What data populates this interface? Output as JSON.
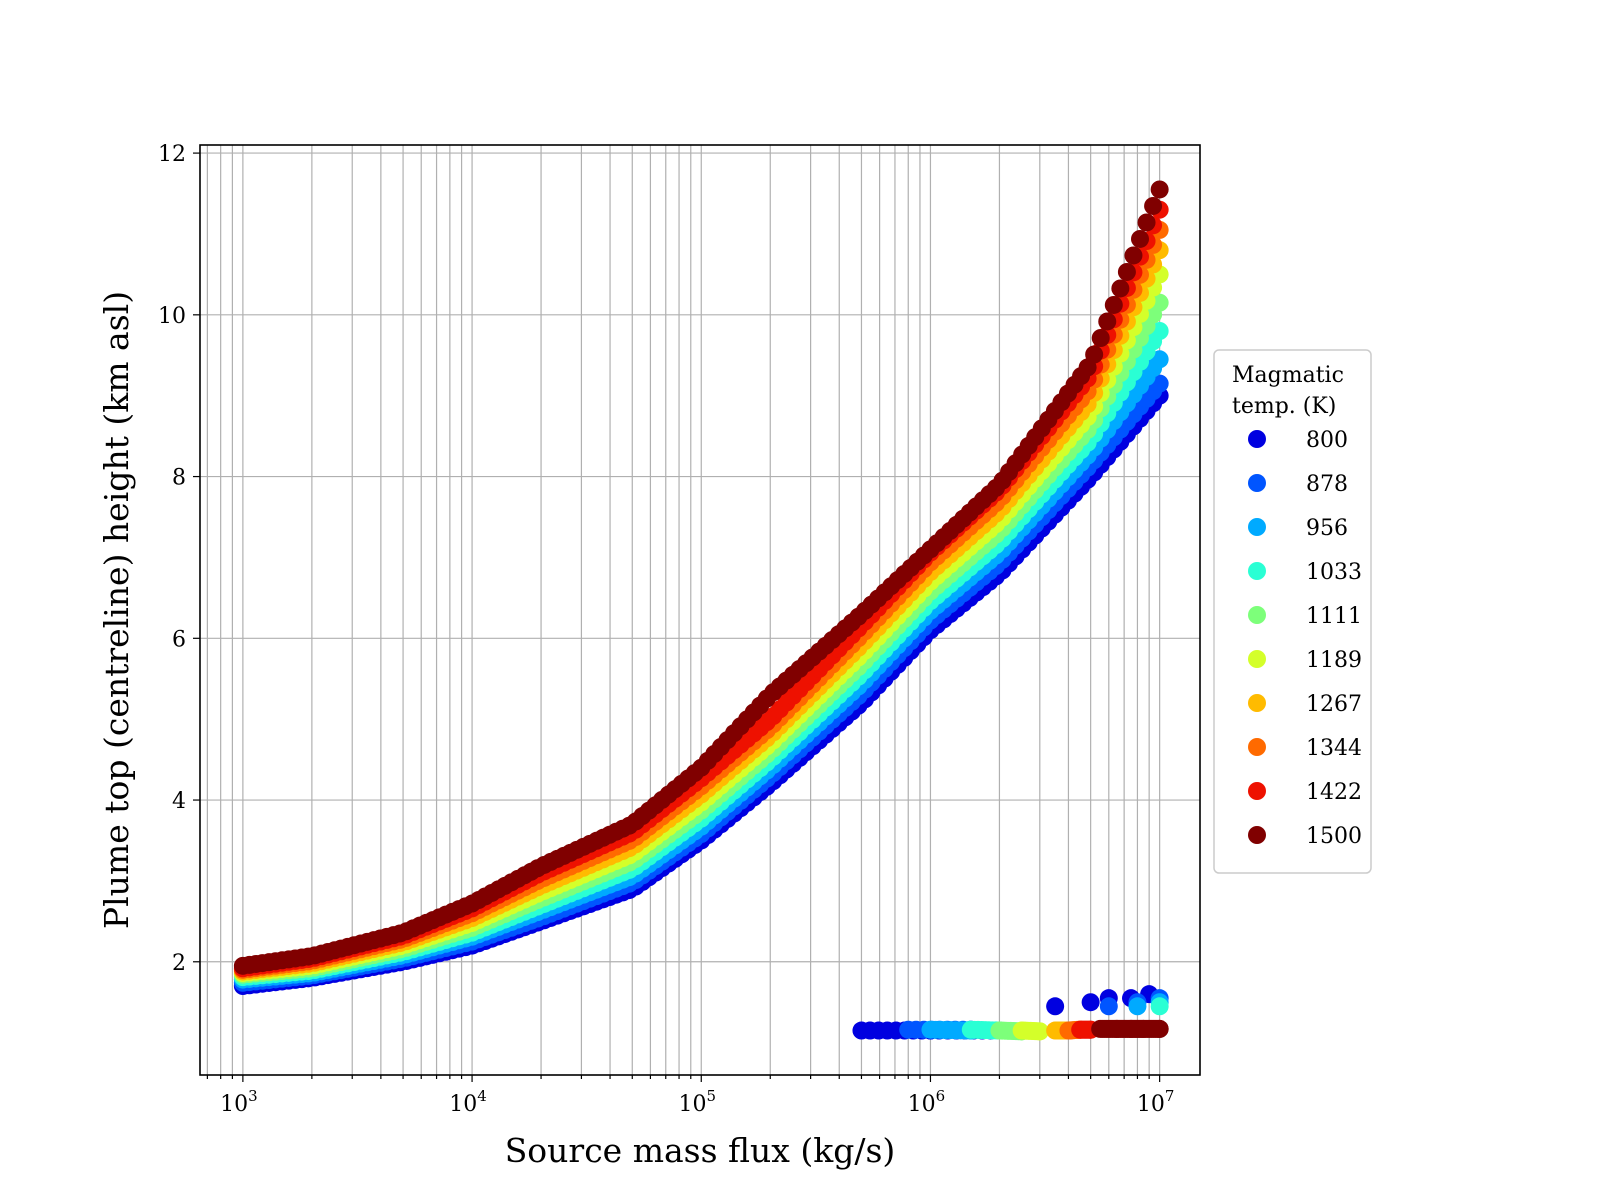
{
  "chart_data": {
    "type": "scatter",
    "title": "",
    "xlabel": "Source mass flux (kg/s)",
    "ylabel": "Plume top (centreline) height (km asl)",
    "xscale": "log",
    "xlim": [
      650,
      15000000
    ],
    "ylim": [
      0.6,
      12.1
    ],
    "x_ticks": [
      {
        "base": "10",
        "exp": "3",
        "value": 1000
      },
      {
        "base": "10",
        "exp": "4",
        "value": 10000
      },
      {
        "base": "10",
        "exp": "5",
        "value": 100000
      },
      {
        "base": "10",
        "exp": "6",
        "value": 1000000
      },
      {
        "base": "10",
        "exp": "7",
        "value": 10000000
      }
    ],
    "y_ticks": [
      2,
      4,
      6,
      8,
      10,
      12
    ],
    "grid": true,
    "legend": {
      "title_lines": [
        "Magmatic",
        "temp. (K)"
      ],
      "placement": "outside-right"
    },
    "series": [
      {
        "name": "800",
        "color": "#0000e0",
        "x": [
          1000,
          2000,
          5000,
          10000,
          20000,
          50000,
          100000,
          200000,
          500000,
          1000000,
          2000000,
          5000000,
          10000000
        ],
        "y": [
          1.7,
          1.8,
          2.0,
          2.2,
          2.5,
          2.9,
          3.5,
          4.2,
          5.2,
          6.1,
          6.8,
          8.0,
          9.0
        ],
        "low_x": [
          500000,
          1000000,
          2000000
        ],
        "low_y": [
          1.15,
          1.15,
          1.15
        ],
        "upper_x": [
          3500000,
          5000000,
          6000000,
          7500000,
          9000000
        ],
        "upper_y": [
          1.45,
          1.5,
          1.55,
          1.55,
          1.6
        ]
      },
      {
        "name": "878",
        "color": "#0055ff",
        "x": [
          1000,
          2000,
          5000,
          10000,
          20000,
          50000,
          100000,
          200000,
          500000,
          1000000,
          2000000,
          5000000,
          10000000
        ],
        "y": [
          1.74,
          1.83,
          2.04,
          2.25,
          2.55,
          2.98,
          3.58,
          4.3,
          5.32,
          6.22,
          6.93,
          8.15,
          9.15
        ],
        "low_x": [
          800000,
          1500000
        ],
        "low_y": [
          1.16,
          1.16
        ],
        "upper_x": [
          6000000,
          8000000,
          10000000
        ],
        "upper_y": [
          1.45,
          1.5,
          1.55
        ]
      },
      {
        "name": "956",
        "color": "#00aaff",
        "x": [
          1000,
          2000,
          5000,
          10000,
          20000,
          50000,
          100000,
          200000,
          500000,
          1000000,
          2000000,
          5000000,
          10000000
        ],
        "y": [
          1.78,
          1.86,
          2.08,
          2.31,
          2.63,
          3.06,
          3.67,
          4.4,
          5.44,
          6.34,
          7.06,
          8.3,
          9.45
        ],
        "low_x": [
          1000000,
          1500000
        ],
        "low_y": [
          1.16,
          1.15
        ],
        "upper_x": [
          8000000,
          10000000
        ],
        "upper_y": [
          1.45,
          1.5
        ]
      },
      {
        "name": "1033",
        "color": "#2affd4",
        "x": [
          1000,
          2000,
          5000,
          10000,
          20000,
          50000,
          100000,
          200000,
          500000,
          1000000,
          2000000,
          5000000,
          10000000
        ],
        "y": [
          1.81,
          1.89,
          2.12,
          2.36,
          2.7,
          3.15,
          3.77,
          4.5,
          5.56,
          6.46,
          7.19,
          8.46,
          9.8
        ],
        "low_x": [
          1500000,
          2000000
        ],
        "low_y": [
          1.16,
          1.15
        ],
        "upper_x": [
          10000000
        ],
        "upper_y": [
          1.45
        ]
      },
      {
        "name": "1111",
        "color": "#7dff7a",
        "x": [
          1000,
          2000,
          5000,
          10000,
          20000,
          50000,
          100000,
          200000,
          500000,
          1000000,
          2000000,
          5000000,
          10000000
        ],
        "y": [
          1.84,
          1.92,
          2.16,
          2.42,
          2.78,
          3.24,
          3.87,
          4.6,
          5.68,
          6.58,
          7.32,
          8.62,
          10.15
        ],
        "low_x": [
          2000000,
          2500000
        ],
        "low_y": [
          1.15,
          1.14
        ],
        "upper_x": [],
        "upper_y": []
      },
      {
        "name": "1189",
        "color": "#d4ff2a",
        "x": [
          1000,
          2000,
          5000,
          10000,
          20000,
          50000,
          100000,
          200000,
          500000,
          1000000,
          2000000,
          5000000,
          10000000
        ],
        "y": [
          1.86,
          1.95,
          2.2,
          2.48,
          2.86,
          3.33,
          3.97,
          4.7,
          5.8,
          6.7,
          7.45,
          8.78,
          10.5
        ],
        "low_x": [
          2500000,
          3000000
        ],
        "low_y": [
          1.15,
          1.14
        ],
        "upper_x": [],
        "upper_y": []
      },
      {
        "name": "1267",
        "color": "#ffbb00",
        "x": [
          1000,
          2000,
          5000,
          10000,
          20000,
          50000,
          100000,
          200000,
          500000,
          1000000,
          2000000,
          5000000,
          10000000
        ],
        "y": [
          1.88,
          1.98,
          2.24,
          2.54,
          2.94,
          3.42,
          4.07,
          4.8,
          5.92,
          6.82,
          7.58,
          8.94,
          10.8
        ],
        "low_x": [
          3500000,
          4000000
        ],
        "low_y": [
          1.15,
          1.15
        ],
        "upper_x": [],
        "upper_y": []
      },
      {
        "name": "1344",
        "color": "#ff6a00",
        "x": [
          1000,
          2000,
          5000,
          10000,
          20000,
          50000,
          100000,
          200000,
          500000,
          1000000,
          2000000,
          5000000,
          10000000
        ],
        "y": [
          1.9,
          2.01,
          2.28,
          2.6,
          3.02,
          3.51,
          4.17,
          4.9,
          6.04,
          6.94,
          7.71,
          9.1,
          11.05
        ],
        "low_x": [
          4000000,
          4500000
        ],
        "low_y": [
          1.15,
          1.16
        ],
        "upper_x": [],
        "upper_y": []
      },
      {
        "name": "1422",
        "color": "#ee1100",
        "x": [
          1000,
          2000,
          5000,
          10000,
          20000,
          50000,
          100000,
          200000,
          500000,
          1000000,
          2000000,
          5000000,
          10000000
        ],
        "y": [
          1.92,
          2.04,
          2.32,
          2.66,
          3.1,
          3.6,
          4.27,
          5.0,
          6.16,
          7.06,
          7.84,
          9.26,
          11.3
        ],
        "low_x": [
          4500000,
          5000000
        ],
        "low_y": [
          1.16,
          1.16
        ],
        "upper_x": [],
        "upper_y": []
      },
      {
        "name": "1500",
        "color": "#800000",
        "x": [
          1000,
          2000,
          5000,
          10000,
          20000,
          50000,
          100000,
          200000,
          500000,
          1000000,
          2000000,
          5000000,
          10000000
        ],
        "y": [
          1.95,
          2.07,
          2.36,
          2.72,
          3.18,
          3.7,
          4.4,
          5.3,
          6.3,
          7.1,
          7.9,
          9.4,
          11.55
        ],
        "low_x": [
          5500000,
          6500000,
          7500000,
          8500000,
          10000000
        ],
        "low_y": [
          1.17,
          1.17,
          1.17,
          1.17,
          1.17
        ],
        "upper_x": [],
        "upper_y": []
      }
    ]
  }
}
